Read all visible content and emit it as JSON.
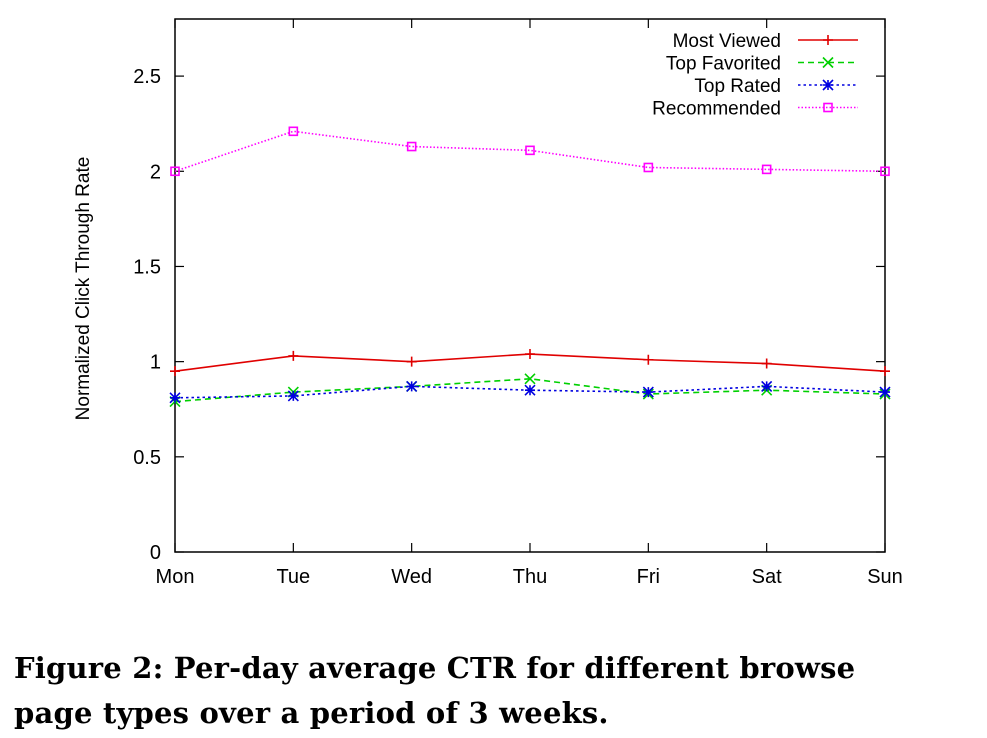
{
  "chart_data": {
    "type": "line",
    "categories": [
      "Mon",
      "Tue",
      "Wed",
      "Thu",
      "Fri",
      "Sat",
      "Sun"
    ],
    "ylabel": "Normalized Click Through Rate",
    "xlabel": "",
    "ylim": [
      0,
      2.8
    ],
    "yticks": [
      0,
      0.5,
      1,
      1.5,
      2,
      2.5
    ],
    "ytick_labels": [
      "0",
      "0.5",
      "1",
      "1.5",
      "2",
      "2.5"
    ],
    "grid": false,
    "legend_position": "top-right",
    "series": [
      {
        "name": "Most Viewed",
        "color": "#e00000",
        "dash": "solid",
        "marker": "plus",
        "values": [
          0.95,
          1.03,
          1.0,
          1.04,
          1.01,
          0.99,
          0.95
        ]
      },
      {
        "name": "Top Favorited",
        "color": "#00d000",
        "dash": "dashed",
        "marker": "x",
        "values": [
          0.79,
          0.84,
          0.87,
          0.91,
          0.83,
          0.85,
          0.83
        ]
      },
      {
        "name": "Top Rated",
        "color": "#0000e0",
        "dash": "dotted",
        "marker": "star",
        "values": [
          0.81,
          0.82,
          0.87,
          0.85,
          0.84,
          0.87,
          0.84
        ]
      },
      {
        "name": "Recommended",
        "color": "#ff00ff",
        "dash": "fine-dotted",
        "marker": "square",
        "values": [
          2.0,
          2.21,
          2.13,
          2.11,
          2.02,
          2.01,
          2.0
        ]
      }
    ]
  },
  "caption": {
    "line1": "Figure 2: Per-day average CTR for different browse",
    "line2": "page types over a period of 3 weeks."
  }
}
